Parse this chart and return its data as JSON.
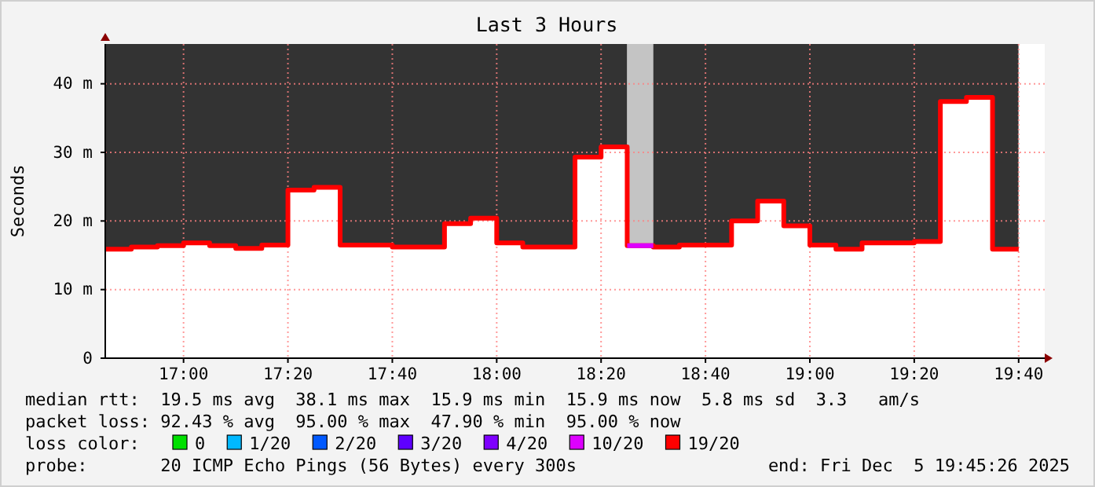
{
  "chart_data": {
    "type": "step",
    "title": "Last 3 Hours",
    "ylabel": "Seconds",
    "legend_title": "loss color:",
    "legend": "bottom",
    "xlim": [
      16.75,
      19.75
    ],
    "xticks": [
      {
        "value": 17,
        "label": "17:00"
      },
      {
        "value": 17.3333,
        "label": "17:20"
      },
      {
        "value": 17.6667,
        "label": "17:40"
      },
      {
        "value": 18,
        "label": "18:00"
      },
      {
        "value": 18.3333,
        "label": "18:20"
      },
      {
        "value": 18.6667,
        "label": "18:40"
      },
      {
        "value": 19,
        "label": "19:00"
      },
      {
        "value": 19.3333,
        "label": "19:20"
      },
      {
        "value": 19.6667,
        "label": "19:40"
      }
    ],
    "ylim": [
      0,
      45.8
    ],
    "yticks": [
      0,
      {
        "value": 10,
        "label": "10 m"
      },
      {
        "value": 20,
        "label": "20 m"
      },
      {
        "value": 30,
        "label": "30 m"
      },
      {
        "value": 40,
        "label": "40 m"
      }
    ],
    "grid": true,
    "x": [
      16.75,
      16.8333,
      16.9167,
      17,
      17.0833,
      17.1667,
      17.25,
      17.3333,
      17.4167,
      17.5,
      17.5833,
      17.6667,
      17.75,
      17.8333,
      17.9167,
      18,
      18.0833,
      18.1667,
      18.25,
      18.3333,
      18.4167,
      18.5,
      18.5833,
      18.6667,
      18.75,
      18.8333,
      18.9167,
      19,
      19.0833,
      19.1667,
      19.25,
      19.3333,
      19.4167,
      19.5,
      19.5833,
      19.6667
    ],
    "series": [
      {
        "color": "#ff0000",
        "values": [
          15.9,
          16.2,
          16.4,
          16.8,
          16.4,
          16.0,
          16.5,
          24.5,
          24.9,
          16.5,
          16.5,
          16.2,
          16.2,
          19.6,
          20.4,
          16.8,
          16.2,
          16.2,
          29.3,
          30.8,
          16.4,
          16.2,
          16.5,
          16.5,
          20.0,
          22.9,
          19.3,
          16.5,
          15.9,
          16.8,
          16.8,
          17.0,
          37.4,
          38.0,
          15.9,
          15.9
        ]
      },
      {
        "name": "0",
        "color": "#00e000",
        "values": [
          null,
          null,
          null,
          null,
          null,
          null,
          null,
          null,
          null,
          null,
          null,
          null,
          null,
          null,
          null,
          null,
          null,
          null,
          null,
          null,
          null,
          null,
          null,
          null,
          null,
          null,
          null,
          null,
          null,
          null,
          null,
          null,
          null,
          null,
          null,
          null
        ]
      },
      {
        "name": "1/20",
        "color": "#00b8ff",
        "values": [
          null,
          null,
          null,
          null,
          null,
          null,
          null,
          null,
          null,
          null,
          null,
          null,
          null,
          null,
          null,
          null,
          null,
          null,
          null,
          null,
          null,
          null,
          null,
          null,
          null,
          null,
          null,
          null,
          null,
          null,
          null,
          null,
          null,
          null,
          null,
          null
        ]
      },
      {
        "name": "2/20",
        "color": "#0059ff",
        "values": [
          null,
          null,
          null,
          null,
          null,
          null,
          null,
          null,
          null,
          null,
          null,
          null,
          null,
          null,
          null,
          null,
          null,
          null,
          null,
          null,
          null,
          null,
          null,
          null,
          null,
          null,
          null,
          null,
          null,
          null,
          null,
          null,
          null,
          null,
          null,
          null
        ]
      },
      {
        "name": "3/20",
        "color": "#5e00ff",
        "values": [
          null,
          null,
          null,
          null,
          null,
          null,
          null,
          null,
          null,
          null,
          null,
          null,
          null,
          null,
          null,
          null,
          null,
          null,
          null,
          null,
          null,
          null,
          null,
          null,
          null,
          null,
          null,
          null,
          null,
          null,
          null,
          null,
          null,
          null,
          null,
          null
        ]
      },
      {
        "name": "4/20",
        "color": "#7e00ff",
        "values": [
          null,
          null,
          null,
          null,
          null,
          null,
          null,
          null,
          null,
          null,
          null,
          null,
          null,
          null,
          null,
          null,
          null,
          null,
          null,
          null,
          null,
          null,
          null,
          null,
          null,
          null,
          null,
          null,
          null,
          null,
          null,
          null,
          null,
          null,
          null,
          null
        ]
      },
      {
        "name": "10/20",
        "color": "#dd00ff",
        "x": [
          18.4167,
          18.5
        ],
        "values": [
          16.4,
          16.4
        ]
      },
      {
        "name": "19/20",
        "color": "#ff0000",
        "values": [
          null,
          null,
          null,
          null,
          null,
          null,
          null,
          null,
          null,
          null,
          null,
          null,
          null,
          null,
          null,
          null,
          null,
          null,
          null,
          null,
          null,
          null,
          null,
          null,
          null,
          null,
          null,
          null,
          null,
          null,
          null,
          null,
          null,
          null,
          null,
          null
        ]
      }
    ],
    "bands": [
      {
        "axis": "x",
        "from": 16.75,
        "to": 18.4167,
        "color": "#333333"
      },
      {
        "axis": "x",
        "from": 18.4167,
        "to": 18.5,
        "color": "#c4c4c4"
      },
      {
        "axis": "x",
        "from": 18.5,
        "to": 19.6667,
        "color": "#333333"
      }
    ],
    "annotations": [
      "median rtt:  19.5 ms avg  38.1 ms max  15.9 ms min  15.9 ms now  5.8 ms sd  3.3   am/s",
      "packet loss: 92.43 % avg  95.00 % max  47.90 % min  95.00 % now",
      "probe:       20 ICMP Echo Pings (56 Bytes) every 300s",
      "end: Fri Dec  5 19:45:26 2025"
    ]
  }
}
